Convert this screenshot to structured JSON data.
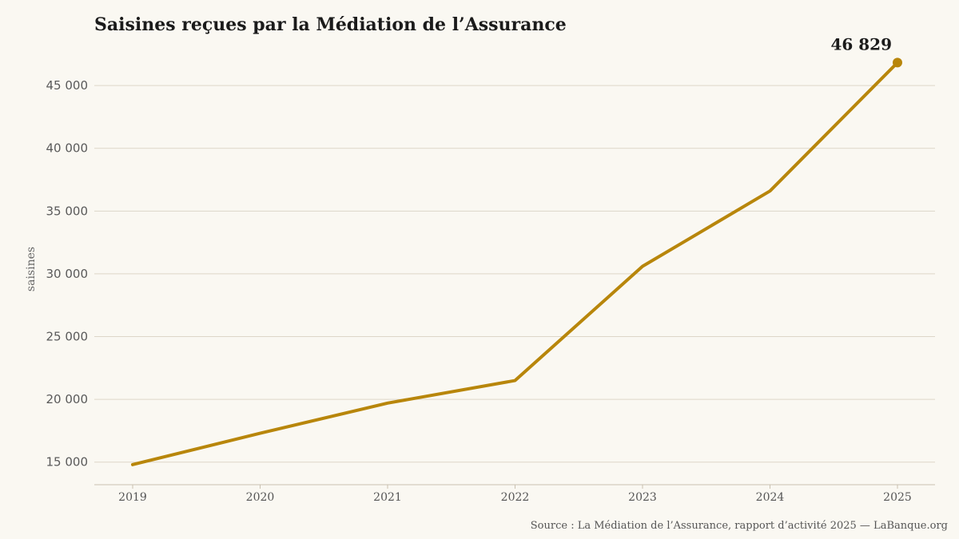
{
  "chart_data": {
    "type": "line",
    "title": "Saisines reçues par la Médiation de l’Assurance",
    "xlabel": "",
    "ylabel": "saisines",
    "x": [
      "2019",
      "2020",
      "2021",
      "2022",
      "2023",
      "2024",
      "2025"
    ],
    "series": [
      {
        "values": [
          14800,
          17300,
          19700,
          21500,
          30600,
          36600,
          46829
        ]
      }
    ],
    "ylim": [
      13200,
      48000
    ],
    "yticks": [
      15000,
      20000,
      25000,
      30000,
      35000,
      40000,
      45000
    ],
    "ytick_labels": [
      "15 000",
      "20 000",
      "25 000",
      "30 000",
      "35 000",
      "40 000",
      "45 000"
    ],
    "grid": "horizontal",
    "legend": "none",
    "end_label": "46 829",
    "colors": {
      "line": "#b8860b",
      "grid": "#ddd6c8",
      "background": "#faf8f2"
    }
  },
  "source": "Source : La Médiation de l’Assurance, rapport d’activité 2025 — LaBanque.org"
}
